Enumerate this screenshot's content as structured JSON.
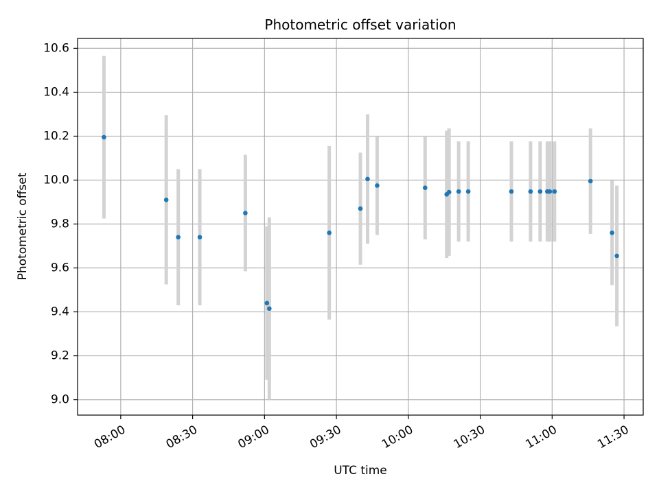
{
  "chart_data": {
    "type": "scatter",
    "title": "Photometric offset variation",
    "xlabel": "UTC time",
    "ylabel": "Photometric offset",
    "x_axis_type": "time",
    "xlim": [
      "07:42",
      "11:38"
    ],
    "ylim": [
      8.93,
      10.645
    ],
    "grid": true,
    "x_ticks": [
      "08:00",
      "08:30",
      "09:00",
      "09:30",
      "10:00",
      "10:30",
      "11:00",
      "11:30"
    ],
    "y_ticks": [
      9.0,
      9.2,
      9.4,
      9.6,
      9.8,
      10.0,
      10.2,
      10.4,
      10.6
    ],
    "y_tick_labels": [
      "9.0",
      "9.2",
      "9.4",
      "9.6",
      "9.8",
      "10.0",
      "10.2",
      "10.4",
      "10.6"
    ],
    "colors": {
      "point": "#1f77b4",
      "errorbar": "#d3d3d3",
      "grid": "#b0b0b0"
    },
    "points": [
      {
        "x": "07:53",
        "y": 10.195,
        "err": 0.37
      },
      {
        "x": "08:19",
        "y": 9.91,
        "err": 0.385
      },
      {
        "x": "08:24",
        "y": 9.74,
        "err": 0.31
      },
      {
        "x": "08:33",
        "y": 9.74,
        "err": 0.31
      },
      {
        "x": "08:52",
        "y": 9.85,
        "err": 0.265
      },
      {
        "x": "09:01",
        "y": 9.44,
        "err": 0.35
      },
      {
        "x": "09:02",
        "y": 9.415,
        "err": 0.415
      },
      {
        "x": "09:27",
        "y": 9.76,
        "err": 0.395
      },
      {
        "x": "09:40",
        "y": 9.87,
        "err": 0.255
      },
      {
        "x": "09:43",
        "y": 10.005,
        "err": 0.295
      },
      {
        "x": "09:47",
        "y": 9.975,
        "err": 0.225
      },
      {
        "x": "10:07",
        "y": 9.965,
        "err": 0.235
      },
      {
        "x": "10:16",
        "y": 9.935,
        "err": 0.29
      },
      {
        "x": "10:17",
        "y": 9.945,
        "err": 0.29
      },
      {
        "x": "10:21",
        "y": 9.948,
        "err": 0.228
      },
      {
        "x": "10:25",
        "y": 9.948,
        "err": 0.228
      },
      {
        "x": "10:43",
        "y": 9.948,
        "err": 0.228
      },
      {
        "x": "10:51",
        "y": 9.948,
        "err": 0.228
      },
      {
        "x": "10:55",
        "y": 9.948,
        "err": 0.228
      },
      {
        "x": "10:58",
        "y": 9.948,
        "err": 0.228
      },
      {
        "x": "10:59",
        "y": 9.948,
        "err": 0.228
      },
      {
        "x": "11:01",
        "y": 9.948,
        "err": 0.228
      },
      {
        "x": "11:16",
        "y": 9.995,
        "err": 0.24
      },
      {
        "x": "11:25",
        "y": 9.76,
        "err": 0.238
      },
      {
        "x": "11:27",
        "y": 9.655,
        "err": 0.32
      }
    ]
  }
}
